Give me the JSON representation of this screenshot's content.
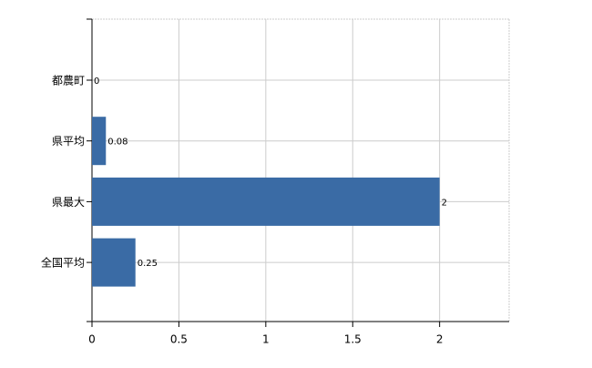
{
  "chart_data": {
    "type": "bar",
    "orientation": "horizontal",
    "categories": [
      "都農町",
      "県平均",
      "県最大",
      "全国平均"
    ],
    "values": [
      0,
      0.08,
      2,
      0.25
    ],
    "color": "#3a6ba5",
    "xlim": [
      0,
      2.4
    ],
    "xticks": [
      0,
      0.5,
      1,
      1.5,
      2
    ],
    "grid": true
  }
}
